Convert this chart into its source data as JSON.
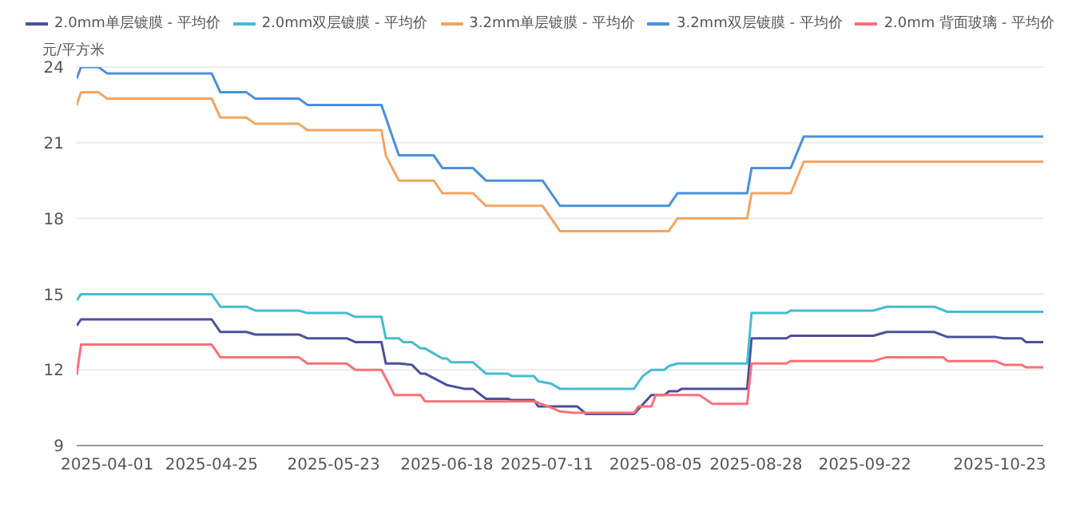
{
  "chart_data": {
    "type": "line",
    "ylabel": "元/平方米",
    "xlim": [
      "2025-03-25",
      "2025-11-02"
    ],
    "xticks": [
      "2025-04-01",
      "2025-04-25",
      "2025-05-23",
      "2025-06-18",
      "2025-07-11",
      "2025-08-05",
      "2025-08-28",
      "2025-09-22",
      "2025-10-23"
    ],
    "ylim": [
      9,
      24
    ],
    "yticks": [
      9,
      12,
      15,
      18,
      21,
      24
    ],
    "grid": "y",
    "legend": "top",
    "marker": "none",
    "line_style": "solid",
    "series": [
      {
        "name": "2.0mm单层镀膜 - 平均价",
        "color": "#4b509b",
        "x": [
          "2025-03-25",
          "2025-03-26",
          "2025-04-25",
          "2025-04-27",
          "2025-05-03",
          "2025-05-05",
          "2025-05-15",
          "2025-05-17",
          "2025-05-26",
          "2025-05-28",
          "2025-06-03",
          "2025-06-04",
          "2025-06-07",
          "2025-06-10",
          "2025-06-12",
          "2025-06-13",
          "2025-06-18",
          "2025-06-22",
          "2025-06-24",
          "2025-06-27",
          "2025-07-02",
          "2025-07-03",
          "2025-07-08",
          "2025-07-09",
          "2025-07-18",
          "2025-07-20",
          "2025-07-31",
          "2025-08-04",
          "2025-08-07",
          "2025-08-08",
          "2025-08-10",
          "2025-08-11",
          "2025-08-26",
          "2025-08-27",
          "2025-09-04",
          "2025-09-05",
          "2025-09-24",
          "2025-09-27",
          "2025-10-08",
          "2025-10-11",
          "2025-10-22",
          "2025-10-24",
          "2025-10-28",
          "2025-10-29",
          "2025-11-02"
        ],
        "values": [
          13.75,
          14.0,
          14.0,
          13.5,
          13.5,
          13.4,
          13.4,
          13.25,
          13.25,
          13.1,
          13.1,
          12.25,
          12.25,
          12.2,
          11.85,
          11.85,
          11.4,
          11.25,
          11.25,
          10.85,
          10.85,
          10.8,
          10.8,
          10.55,
          10.55,
          10.25,
          10.25,
          11.0,
          11.0,
          11.15,
          11.15,
          11.25,
          11.25,
          13.25,
          13.25,
          13.35,
          13.35,
          13.5,
          13.5,
          13.3,
          13.3,
          13.25,
          13.25,
          13.1,
          13.1
        ]
      },
      {
        "name": "2.0mm双层镀膜 - 平均价",
        "color": "#45bcd0",
        "x": [
          "2025-03-25",
          "2025-03-26",
          "2025-04-25",
          "2025-04-27",
          "2025-05-03",
          "2025-05-05",
          "2025-05-15",
          "2025-05-17",
          "2025-05-26",
          "2025-05-28",
          "2025-06-03",
          "2025-06-04",
          "2025-06-07",
          "2025-06-08",
          "2025-06-10",
          "2025-06-12",
          "2025-06-13",
          "2025-06-17",
          "2025-06-18",
          "2025-06-19",
          "2025-06-24",
          "2025-06-27",
          "2025-07-02",
          "2025-07-03",
          "2025-07-08",
          "2025-07-09",
          "2025-07-12",
          "2025-07-14",
          "2025-07-31",
          "2025-08-02",
          "2025-08-04",
          "2025-08-07",
          "2025-08-08",
          "2025-08-10",
          "2025-08-26",
          "2025-08-27",
          "2025-09-04",
          "2025-09-05",
          "2025-09-24",
          "2025-09-27",
          "2025-10-08",
          "2025-10-11",
          "2025-11-02"
        ],
        "values": [
          14.75,
          15.0,
          15.0,
          14.5,
          14.5,
          14.35,
          14.35,
          14.25,
          14.25,
          14.1,
          14.1,
          13.25,
          13.25,
          13.1,
          13.1,
          12.85,
          12.85,
          12.45,
          12.45,
          12.3,
          12.3,
          11.85,
          11.85,
          11.75,
          11.75,
          11.55,
          11.45,
          11.25,
          11.25,
          11.75,
          12.0,
          12.0,
          12.15,
          12.25,
          12.25,
          14.25,
          14.25,
          14.35,
          14.35,
          14.5,
          14.5,
          14.3,
          14.3
        ]
      },
      {
        "name": "3.2mm单层镀膜 - 平均价",
        "color": "#f2a463",
        "x": [
          "2025-03-25",
          "2025-03-26",
          "2025-03-30",
          "2025-04-01",
          "2025-04-25",
          "2025-04-27",
          "2025-05-03",
          "2025-05-05",
          "2025-05-15",
          "2025-05-17",
          "2025-06-03",
          "2025-06-04",
          "2025-06-07",
          "2025-06-15",
          "2025-06-17",
          "2025-06-24",
          "2025-06-27",
          "2025-07-10",
          "2025-07-14",
          "2025-08-08",
          "2025-08-10",
          "2025-08-26",
          "2025-08-27",
          "2025-09-05",
          "2025-09-08",
          "2025-11-02"
        ],
        "values": [
          22.5,
          23.0,
          23.0,
          22.75,
          22.75,
          22.0,
          22.0,
          21.75,
          21.75,
          21.5,
          21.5,
          20.5,
          19.5,
          19.5,
          19.0,
          19.0,
          18.5,
          18.5,
          17.5,
          17.5,
          18.0,
          18.0,
          19.0,
          19.0,
          20.25,
          20.25
        ]
      },
      {
        "name": "3.2mm双层镀膜 - 平均价",
        "color": "#4a90d9",
        "x": [
          "2025-03-25",
          "2025-03-26",
          "2025-03-30",
          "2025-04-01",
          "2025-04-25",
          "2025-04-27",
          "2025-05-03",
          "2025-05-05",
          "2025-05-15",
          "2025-05-17",
          "2025-06-03",
          "2025-06-07",
          "2025-06-15",
          "2025-06-17",
          "2025-06-24",
          "2025-06-27",
          "2025-07-10",
          "2025-07-12",
          "2025-07-14",
          "2025-08-08",
          "2025-08-10",
          "2025-08-26",
          "2025-08-27",
          "2025-09-05",
          "2025-09-08",
          "2025-11-02"
        ],
        "values": [
          23.55,
          24.0,
          24.0,
          23.75,
          23.75,
          23.0,
          23.0,
          22.75,
          22.75,
          22.5,
          22.5,
          20.5,
          20.5,
          20.0,
          20.0,
          19.5,
          19.5,
          19.0,
          18.5,
          18.5,
          19.0,
          19.0,
          20.0,
          20.0,
          21.25,
          21.25
        ]
      },
      {
        "name": "2.0mm 背面玻璃 - 平均价",
        "color": "#f7707a",
        "x": [
          "2025-03-25",
          "2025-03-26",
          "2025-04-25",
          "2025-04-27",
          "2025-05-15",
          "2025-05-17",
          "2025-05-26",
          "2025-05-28",
          "2025-06-03",
          "2025-06-06",
          "2025-06-12",
          "2025-06-13",
          "2025-07-08",
          "2025-07-09",
          "2025-07-12",
          "2025-07-14",
          "2025-07-17",
          "2025-07-31",
          "2025-08-01",
          "2025-08-04",
          "2025-08-05",
          "2025-08-15",
          "2025-08-18",
          "2025-08-26",
          "2025-08-27",
          "2025-09-04",
          "2025-09-05",
          "2025-09-24",
          "2025-09-27",
          "2025-10-10",
          "2025-10-11",
          "2025-10-22",
          "2025-10-24",
          "2025-10-28",
          "2025-10-29",
          "2025-11-02"
        ],
        "values": [
          11.8,
          13.0,
          13.0,
          12.5,
          12.5,
          12.25,
          12.25,
          12.0,
          12.0,
          11.0,
          11.0,
          10.75,
          10.75,
          10.7,
          10.5,
          10.35,
          10.3,
          10.3,
          10.55,
          10.55,
          11.0,
          11.0,
          10.65,
          10.65,
          12.25,
          12.25,
          12.35,
          12.35,
          12.5,
          12.5,
          12.35,
          12.35,
          12.2,
          12.2,
          12.1,
          12.1
        ]
      }
    ]
  }
}
